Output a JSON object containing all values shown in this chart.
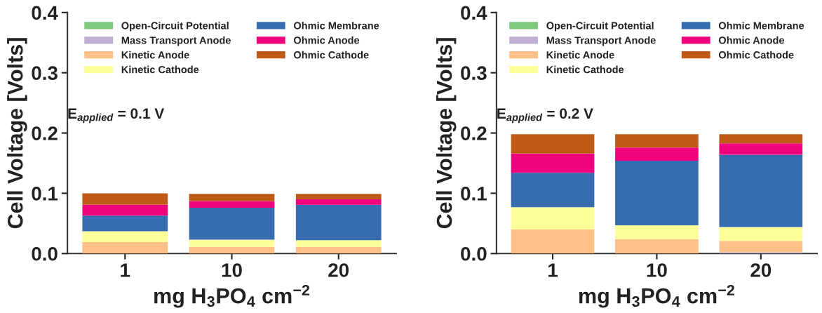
{
  "chart_data": [
    {
      "type": "bar",
      "stacked": true,
      "categories": [
        "1",
        "10",
        "20"
      ],
      "xlabel": "mg H$_{3}$PO$_{4}$ cm$^{−2}$",
      "ylabel": "Cell Voltage [Volts]",
      "ylim": [
        0,
        0.4
      ],
      "yticks": [
        {
          "value": 0,
          "label": "0.0"
        },
        0.1,
        0.2,
        0.3,
        0.4
      ],
      "legend": "top",
      "grid": false,
      "annotations": [
        "E$_{applied}$ = 0.1 V"
      ],
      "series": [
        {
          "name": "Open-Circuit Potential",
          "color": "#7fc97f",
          "values": [
            0,
            0,
            0
          ]
        },
        {
          "name": "Mass Transport Anode",
          "color": "#beaed4",
          "values": [
            0,
            0,
            0
          ]
        },
        {
          "name": "Kinetic Anode",
          "color": "#fdc086",
          "values": [
            0.019,
            0.011,
            0.011
          ]
        },
        {
          "name": "Kinetic Cathode",
          "color": "#ffff99",
          "values": [
            0.018,
            0.012,
            0.011
          ]
        },
        {
          "name": "Ohmic Membrane",
          "color": "#386cb0",
          "values": [
            0.026,
            0.053,
            0.059
          ]
        },
        {
          "name": "Ohmic Anode",
          "color": "#f0027f",
          "values": [
            0.018,
            0.011,
            0.009
          ]
        },
        {
          "name": "Ohmic Cathode",
          "color": "#bf5b17",
          "values": [
            0.019,
            0.012,
            0.009
          ]
        }
      ]
    },
    {
      "type": "bar",
      "stacked": true,
      "categories": [
        "1",
        "10",
        "20"
      ],
      "xlabel": "mg H$_{3}$PO$_{4}$ cm$^{−2}$",
      "ylabel": "Cell Voltage [Volts]",
      "ylim": [
        0,
        0.4
      ],
      "yticks": [
        {
          "value": 0,
          "label": "0.0"
        },
        0.1,
        0.2,
        0.3,
        0.4
      ],
      "legend": "top",
      "grid": false,
      "annotations": [
        "E$_{applied}$ = 0.2 V"
      ],
      "series": [
        {
          "name": "Open-Circuit Potential",
          "color": "#7fc97f",
          "values": [
            0,
            0,
            0
          ]
        },
        {
          "name": "Mass Transport Anode",
          "color": "#beaed4",
          "values": [
            0,
            0,
            0.002
          ]
        },
        {
          "name": "Kinetic Anode",
          "color": "#fdc086",
          "values": [
            0.04,
            0.024,
            0.019
          ]
        },
        {
          "name": "Kinetic Cathode",
          "color": "#ffff99",
          "values": [
            0.037,
            0.023,
            0.023
          ]
        },
        {
          "name": "Ohmic Membrane",
          "color": "#386cb0",
          "values": [
            0.057,
            0.107,
            0.12
          ]
        },
        {
          "name": "Ohmic Anode",
          "color": "#f0027f",
          "values": [
            0.032,
            0.022,
            0.019
          ]
        },
        {
          "name": "Ohmic Cathode",
          "color": "#bf5b17",
          "values": [
            0.032,
            0.022,
            0.015
          ]
        }
      ]
    }
  ]
}
